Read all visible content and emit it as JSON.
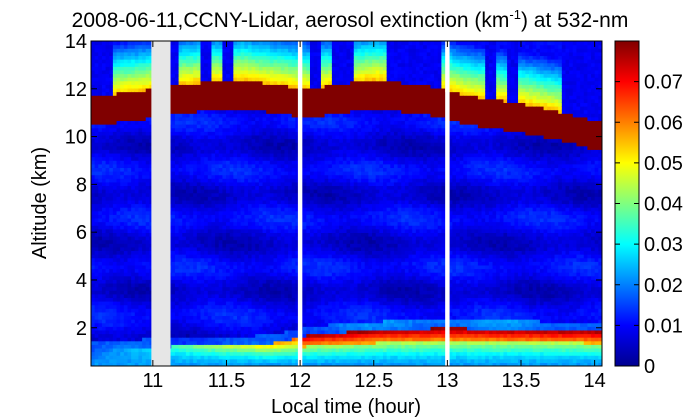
{
  "chart_data": {
    "type": "heatmap",
    "title": {
      "prefix": "2008-06-11,CCNY-Lidar, aerosol extinction (km",
      "superscript": "-1",
      "suffix": ") at 532-nm"
    },
    "xlabel": "Local time (hour)",
    "ylabel": "Altitude (km)",
    "xlim": [
      10.58,
      14.05
    ],
    "ylim": [
      0.4,
      14
    ],
    "x_ticks": [
      {
        "value": 11,
        "label": "11"
      },
      {
        "value": 11.5,
        "label": "11.5"
      },
      {
        "value": 12,
        "label": "12"
      },
      {
        "value": 12.5,
        "label": "12.5"
      },
      {
        "value": 13,
        "label": "13"
      },
      {
        "value": 13.5,
        "label": "13.5"
      },
      {
        "value": 14,
        "label": "14"
      }
    ],
    "y_ticks": [
      {
        "value": 2,
        "label": "2"
      },
      {
        "value": 4,
        "label": "4"
      },
      {
        "value": 6,
        "label": "6"
      },
      {
        "value": 8,
        "label": "8"
      },
      {
        "value": 10,
        "label": "10"
      },
      {
        "value": 12,
        "label": "12"
      },
      {
        "value": 14,
        "label": "14"
      }
    ],
    "colorbar": {
      "vmin": 0,
      "vmax": 0.08,
      "ticks": [
        {
          "value": 0,
          "label": "0"
        },
        {
          "value": 0.01,
          "label": "0.01"
        },
        {
          "value": 0.02,
          "label": "0.02"
        },
        {
          "value": 0.03,
          "label": "0.03"
        },
        {
          "value": 0.04,
          "label": "0.04"
        },
        {
          "value": 0.05,
          "label": "0.05"
        },
        {
          "value": 0.06,
          "label": "0.06"
        },
        {
          "value": 0.07,
          "label": "0.07"
        }
      ]
    },
    "data_gaps": [
      {
        "x_start": 10.99,
        "x_end": 11.12
      },
      {
        "x_start": 11.985,
        "x_end": 12.015
      },
      {
        "x_start": 12.985,
        "x_end": 13.015
      }
    ],
    "boundary_layer_top_km": [
      {
        "x": 10.6,
        "y": 1.1
      },
      {
        "x": 11.2,
        "y": 1.25
      },
      {
        "x": 11.8,
        "y": 1.35
      },
      {
        "x": 12.1,
        "y": 1.75
      },
      {
        "x": 12.6,
        "y": 1.95
      },
      {
        "x": 13.0,
        "y": 2.0
      },
      {
        "x": 13.5,
        "y": 1.95
      },
      {
        "x": 14.05,
        "y": 1.9
      }
    ],
    "cirrus_base_km": [
      {
        "x": 10.6,
        "y": 10.5
      },
      {
        "x": 10.9,
        "y": 10.7
      },
      {
        "x": 11.2,
        "y": 11.0
      },
      {
        "x": 11.6,
        "y": 11.2
      },
      {
        "x": 12.05,
        "y": 10.8
      },
      {
        "x": 12.5,
        "y": 11.2
      },
      {
        "x": 12.9,
        "y": 10.9
      },
      {
        "x": 13.15,
        "y": 10.5
      },
      {
        "x": 13.5,
        "y": 10.2
      },
      {
        "x": 13.8,
        "y": 9.8
      },
      {
        "x": 14.05,
        "y": 9.4
      }
    ]
  }
}
